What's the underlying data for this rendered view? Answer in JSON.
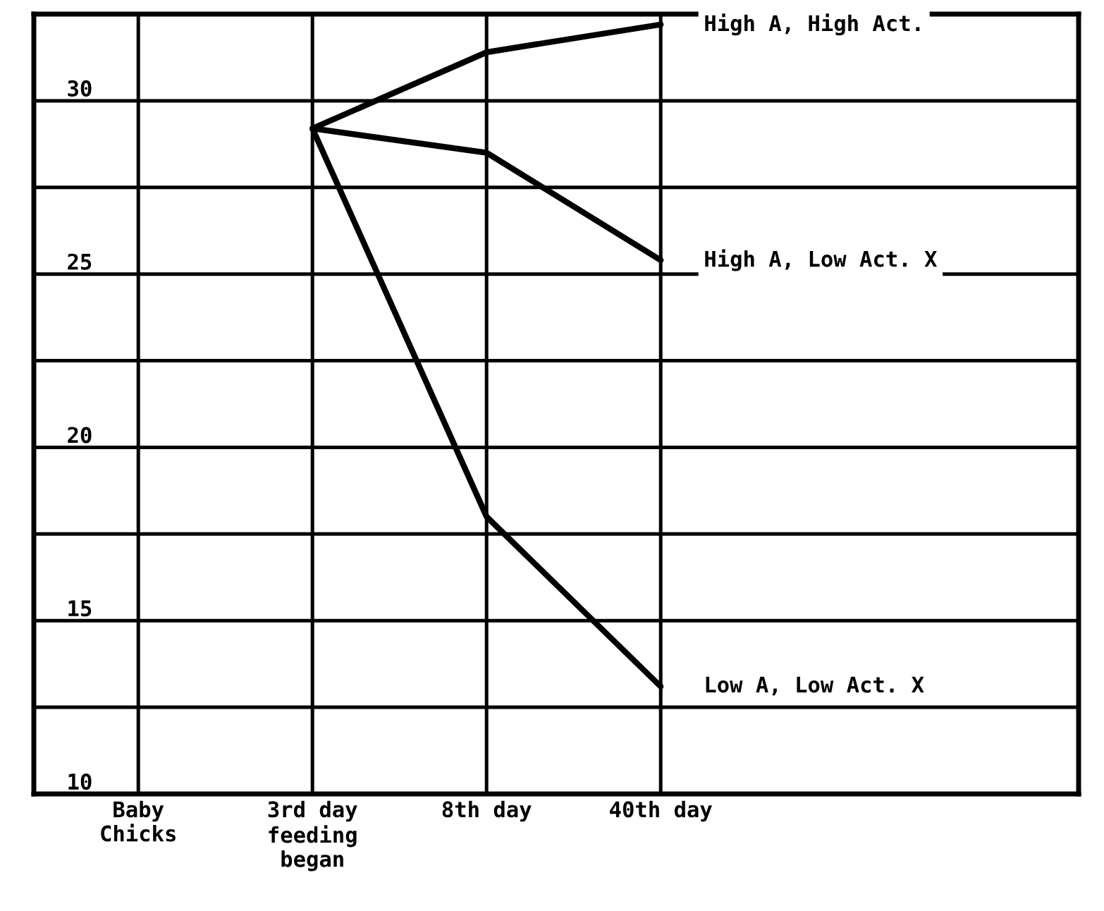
{
  "chart_data": {
    "type": "line",
    "categories": [
      "Baby\nChicks",
      "3rd day\nfeeding\nbegan",
      "8th day",
      "40th day"
    ],
    "series": [
      {
        "name": "High A, High Act.",
        "color": "#000000",
        "values": [
          null,
          29.2,
          31.4,
          32.2
        ]
      },
      {
        "name": "High A, Low Act. X",
        "color": "#000000",
        "values": [
          null,
          29.2,
          28.5,
          25.4
        ]
      },
      {
        "name": "Low A, Low Act. X",
        "color": "#000000",
        "values": [
          null,
          29.2,
          18.0,
          13.1
        ]
      }
    ],
    "ylim": [
      10,
      32.5
    ],
    "yticks": [
      10,
      {
        "value": 12.5,
        "label": null
      },
      15,
      {
        "value": 17.5,
        "label": null
      },
      20,
      {
        "value": 22.5,
        "label": null
      },
      25,
      {
        "value": 27.5,
        "label": null
      },
      30
    ],
    "grid": true,
    "legend": false,
    "marker": "none",
    "line_style": "solid"
  }
}
